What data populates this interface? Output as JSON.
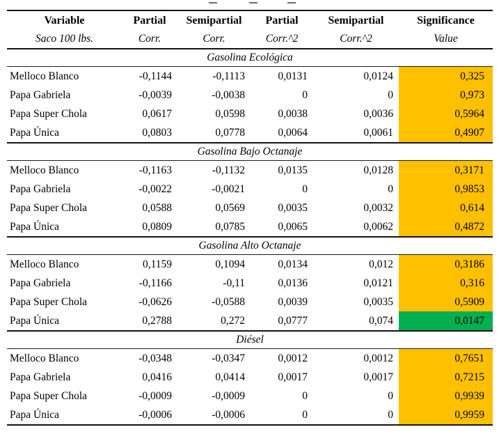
{
  "table": {
    "columns": [
      {
        "label": "Variable",
        "sublabel": "Saco 100 lbs."
      },
      {
        "label": "Partial",
        "sublabel": "Corr."
      },
      {
        "label": "Semipartial",
        "sublabel": "Corr."
      },
      {
        "label": "Partial",
        "sublabel": "Corr.^2"
      },
      {
        "label": "Semipartial",
        "sublabel": "Corr.^2"
      },
      {
        "label": "Significance",
        "sublabel": "Value"
      }
    ],
    "highlight_colors": {
      "orange": "#FFC000",
      "green": "#00B050"
    },
    "sections": [
      {
        "title": "Gasolina Ecológica",
        "rows": [
          {
            "cells": [
              "Melloco Blanco",
              "-0,1144",
              "-0,1113",
              "0,0131",
              "0,0124",
              "0,325"
            ],
            "highlight": "orange"
          },
          {
            "cells": [
              "Papa Gabriela",
              "-0,0039",
              "-0,0038",
              "0",
              "0",
              "0,973"
            ],
            "highlight": "orange"
          },
          {
            "cells": [
              "Papa Super Chola",
              "0,0617",
              "0,0598",
              "0,0038",
              "0,0036",
              "0,5964"
            ],
            "highlight": "orange"
          },
          {
            "cells": [
              "Papa Única",
              "0,0803",
              "0,0778",
              "0,0064",
              "0,0061",
              "0,4907"
            ],
            "highlight": "orange"
          }
        ]
      },
      {
        "title": "Gasolina Bajo Octanaje",
        "rows": [
          {
            "cells": [
              "Melloco Blanco",
              "-0,1163",
              "-0,1132",
              "0,0135",
              "0,0128",
              "0,3171"
            ],
            "highlight": "orange"
          },
          {
            "cells": [
              "Papa Gabriela",
              "-0,0022",
              "-0,0021",
              "0",
              "0",
              "0,9853"
            ],
            "highlight": "orange"
          },
          {
            "cells": [
              "Papa Super Chola",
              "0,0588",
              "0,0569",
              "0,0035",
              "0,0032",
              "0,614"
            ],
            "highlight": "orange"
          },
          {
            "cells": [
              "Papa Única",
              "0,0809",
              "0,0785",
              "0,0065",
              "0,0062",
              "0,4872"
            ],
            "highlight": "orange"
          }
        ]
      },
      {
        "title": "Gasolina Alto Octanaje",
        "rows": [
          {
            "cells": [
              "Melloco Blanco",
              "0,1159",
              "0,1094",
              "0,0134",
              "0,012",
              "0,3186"
            ],
            "highlight": "orange"
          },
          {
            "cells": [
              "Papa Gabriela",
              "-0,1166",
              "-0,11",
              "0,0136",
              "0,0121",
              "0,316"
            ],
            "highlight": "orange"
          },
          {
            "cells": [
              "Papa Super Chola",
              "-0,0626",
              "-0,0588",
              "0,0039",
              "0,0035",
              "0,5909"
            ],
            "highlight": "orange"
          },
          {
            "cells": [
              "Papa Única",
              "0,2788",
              "0,272",
              "0,0777",
              "0,074",
              "0,0147"
            ],
            "highlight": "green"
          }
        ]
      },
      {
        "title": "Diésel",
        "rows": [
          {
            "cells": [
              "Melloco Blanco",
              "-0,0348",
              "-0,0347",
              "0,0012",
              "0,0012",
              "0,7651"
            ],
            "highlight": "orange"
          },
          {
            "cells": [
              "Papa Gabriela",
              "0,0416",
              "0,0414",
              "0,0017",
              "0,0017",
              "0,7215"
            ],
            "highlight": "orange"
          },
          {
            "cells": [
              "Papa Super Chola",
              "-0,0009",
              "-0,0009",
              "0",
              "0",
              "0,9939"
            ],
            "highlight": "orange"
          },
          {
            "cells": [
              "Papa Única",
              "-0,0006",
              "-0,0006",
              "0",
              "0",
              "0,9959"
            ],
            "highlight": "orange"
          }
        ]
      }
    ]
  }
}
